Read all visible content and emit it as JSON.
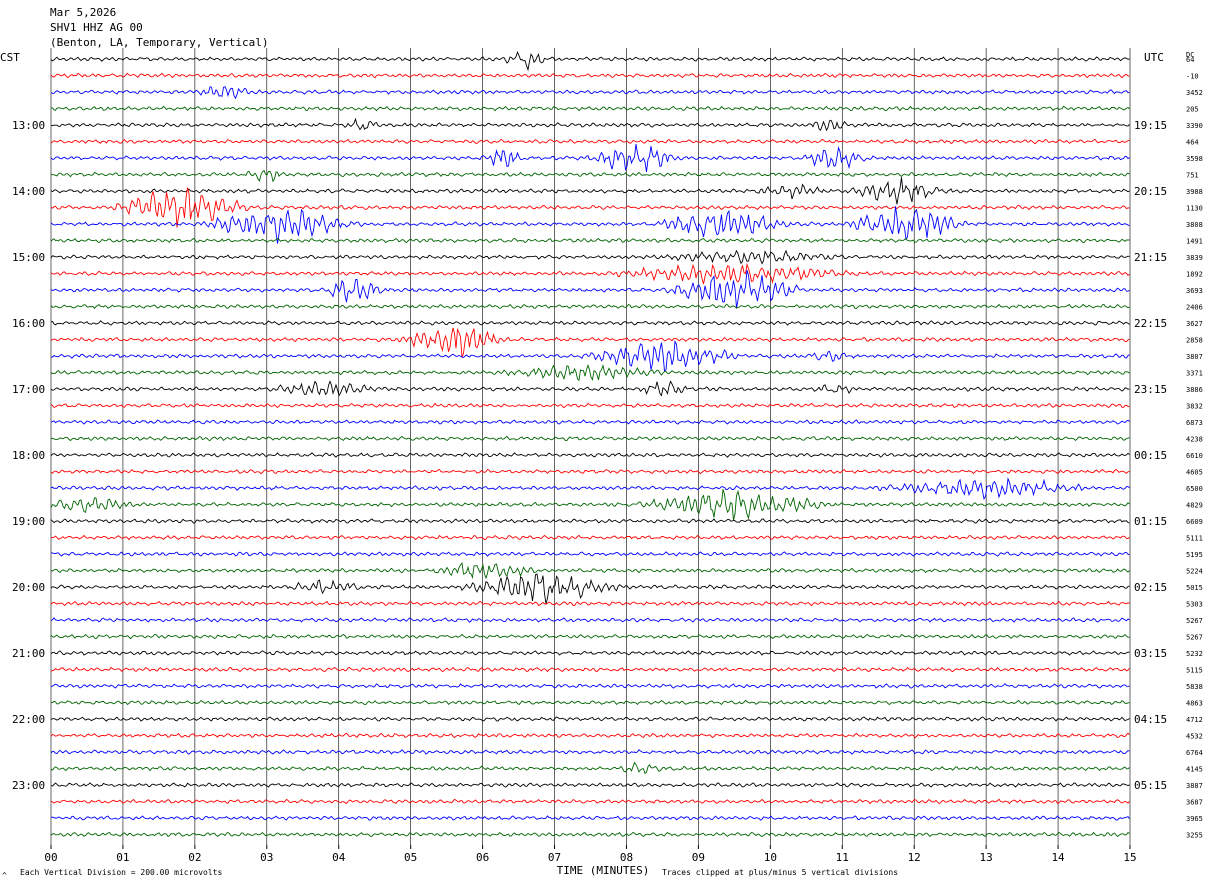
{
  "header": {
    "date": "Mar 5,2026",
    "station": "SHV1 HHZ AG 00",
    "location": "(Benton, LA, Temporary, Vertical)"
  },
  "left_zone": "CST",
  "right_zone": "UTC",
  "dc_header": "DC",
  "footer": {
    "scale": "Each Vertical Division =  200.00 microvolts",
    "clip": "Traces clipped at plus/minus 5 vertical divisions",
    "corner": "^"
  },
  "colors": {
    "trace_cycle": [
      "#000000",
      "#ff0000",
      "#0000ff",
      "#006400"
    ],
    "grid": "#000000"
  },
  "chart_data": {
    "type": "line",
    "title": "SHV1 HHZ AG 00",
    "xlabel": "TIME (MINUTES)",
    "x_ticks": [
      "00",
      "01",
      "02",
      "03",
      "04",
      "05",
      "06",
      "07",
      "08",
      "09",
      "10",
      "11",
      "12",
      "13",
      "14",
      "15"
    ],
    "xlim": [
      0,
      15
    ],
    "rows_per_hour": 4,
    "row_count": 48,
    "left_hour_labels": [
      "13:00",
      "14:00",
      "15:00",
      "16:00",
      "17:00",
      "18:00",
      "19:00",
      "20:00",
      "21:00",
      "22:00",
      "23:00"
    ],
    "right_hour_labels": [
      "19:15",
      "20:15",
      "21:15",
      "22:15",
      "23:15",
      "00:15",
      "01:15",
      "02:15",
      "03:15",
      "04:15",
      "05:15"
    ],
    "hour_label_first_row": 4,
    "dc_offsets": [
      "64",
      "-10",
      "3452",
      "205",
      "3390",
      "464",
      "3598",
      "751",
      "3988",
      "1130",
      "3808",
      "1491",
      "3839",
      "1892",
      "3693",
      "2406",
      "3627",
      "2858",
      "3807",
      "3371",
      "3886",
      "3832",
      "6873",
      "4238",
      "6610",
      "4605",
      "6500",
      "4829",
      "6609",
      "5111",
      "5195",
      "5224",
      "5015",
      "5303",
      "5267",
      "5267",
      "5232",
      "5115",
      "5838",
      "4863",
      "4712",
      "4532",
      "6764",
      "4145",
      "3887",
      "3687",
      "3965",
      "3255"
    ],
    "events": [
      {
        "row": 0,
        "minute": 6.6,
        "amp": 1.6,
        "dur": 0.35
      },
      {
        "row": 2,
        "minute": 2.4,
        "amp": 1.2,
        "dur": 0.4
      },
      {
        "row": 4,
        "minute": 4.3,
        "amp": 1.2,
        "dur": 0.3
      },
      {
        "row": 4,
        "minute": 10.8,
        "amp": 1.0,
        "dur": 0.3
      },
      {
        "row": 6,
        "minute": 6.3,
        "amp": 1.5,
        "dur": 0.4
      },
      {
        "row": 6,
        "minute": 8.1,
        "amp": 2.6,
        "dur": 0.7
      },
      {
        "row": 6,
        "minute": 10.9,
        "amp": 2.0,
        "dur": 0.5
      },
      {
        "row": 7,
        "minute": 3.0,
        "amp": 1.2,
        "dur": 0.3
      },
      {
        "row": 8,
        "minute": 10.3,
        "amp": 1.0,
        "dur": 0.6
      },
      {
        "row": 8,
        "minute": 11.8,
        "amp": 2.0,
        "dur": 0.8
      },
      {
        "row": 9,
        "minute": 1.8,
        "amp": 3.5,
        "dur": 1.0
      },
      {
        "row": 10,
        "minute": 3.2,
        "amp": 2.8,
        "dur": 1.2
      },
      {
        "row": 10,
        "minute": 9.3,
        "amp": 3.0,
        "dur": 1.0
      },
      {
        "row": 10,
        "minute": 11.9,
        "amp": 3.5,
        "dur": 0.9
      },
      {
        "row": 12,
        "minute": 9.8,
        "amp": 1.0,
        "dur": 1.5
      },
      {
        "row": 13,
        "minute": 9.5,
        "amp": 1.8,
        "dur": 1.8
      },
      {
        "row": 14,
        "minute": 4.2,
        "amp": 2.0,
        "dur": 0.5
      },
      {
        "row": 14,
        "minute": 9.5,
        "amp": 3.5,
        "dur": 1.0
      },
      {
        "row": 17,
        "minute": 5.6,
        "amp": 3.0,
        "dur": 0.8
      },
      {
        "row": 18,
        "minute": 8.5,
        "amp": 2.5,
        "dur": 1.2
      },
      {
        "row": 18,
        "minute": 10.8,
        "amp": 1.0,
        "dur": 0.3
      },
      {
        "row": 19,
        "minute": 7.4,
        "amp": 1.2,
        "dur": 1.2
      },
      {
        "row": 20,
        "minute": 3.8,
        "amp": 1.2,
        "dur": 0.8
      },
      {
        "row": 20,
        "minute": 8.5,
        "amp": 1.5,
        "dur": 0.4
      },
      {
        "row": 20,
        "minute": 10.9,
        "amp": 1.0,
        "dur": 0.3
      },
      {
        "row": 26,
        "minute": 13.0,
        "amp": 1.6,
        "dur": 1.6
      },
      {
        "row": 27,
        "minute": 9.5,
        "amp": 2.5,
        "dur": 1.4
      },
      {
        "row": 27,
        "minute": 0.5,
        "amp": 1.2,
        "dur": 0.7
      },
      {
        "row": 31,
        "minute": 6.0,
        "amp": 1.5,
        "dur": 0.8
      },
      {
        "row": 32,
        "minute": 6.8,
        "amp": 2.5,
        "dur": 1.2
      },
      {
        "row": 32,
        "minute": 3.8,
        "amp": 1.0,
        "dur": 0.6
      },
      {
        "row": 43,
        "minute": 8.2,
        "amp": 1.0,
        "dur": 0.3
      }
    ]
  }
}
